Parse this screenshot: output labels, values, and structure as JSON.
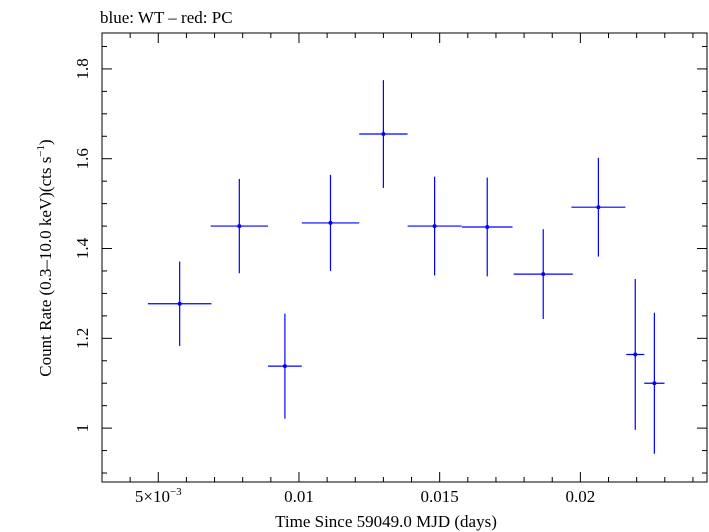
{
  "chart_data": {
    "type": "scatter",
    "title": "blue: WT – red: PC",
    "xlabel": "Time Since 59049.0 MJD (days)",
    "ylabel_main": "Count Rate (0.3–10.0 keV)(cts s",
    "ylabel_sup": "−1",
    "ylabel_close": ")",
    "xlim": [
      0.003,
      0.0245
    ],
    "ylim": [
      0.88,
      1.88
    ],
    "x_ticks": [
      {
        "value": 0.005,
        "label_base": "5×10",
        "label_exp": "−3"
      },
      {
        "value": 0.01,
        "label": "0.01"
      },
      {
        "value": 0.015,
        "label": "0.015"
      },
      {
        "value": 0.02,
        "label": "0.02"
      }
    ],
    "y_ticks": [
      {
        "value": 1.0,
        "label": "1"
      },
      {
        "value": 1.2,
        "label": "1.2"
      },
      {
        "value": 1.4,
        "label": "1.4"
      },
      {
        "value": 1.6,
        "label": "1.6"
      },
      {
        "value": 1.8,
        "label": "1.8"
      }
    ],
    "grid": false,
    "series": [
      {
        "color": "#0000ff",
        "points": [
          {
            "x": 0.00576,
            "y": 1.277,
            "xerr": 0.00113,
            "yerr": 0.094
          },
          {
            "x": 0.00788,
            "y": 1.45,
            "xerr": 0.00102,
            "yerr": 0.105
          },
          {
            "x": 0.0095,
            "y": 1.138,
            "xerr": 0.0006,
            "yerr": 0.117
          },
          {
            "x": 0.01112,
            "y": 1.457,
            "xerr": 0.00102,
            "yerr": 0.107
          },
          {
            "x": 0.013,
            "y": 1.655,
            "xerr": 0.00086,
            "yerr": 0.12
          },
          {
            "x": 0.01482,
            "y": 1.45,
            "xerr": 0.00096,
            "yerr": 0.11
          },
          {
            "x": 0.01669,
            "y": 1.448,
            "xerr": 0.0009,
            "yerr": 0.11
          },
          {
            "x": 0.01868,
            "y": 1.343,
            "xerr": 0.00105,
            "yerr": 0.1
          },
          {
            "x": 0.02064,
            "y": 1.492,
            "xerr": 0.00096,
            "yerr": 0.11
          },
          {
            "x": 0.02195,
            "y": 1.164,
            "xerr": 0.00032,
            "yerr": 0.168
          },
          {
            "x": 0.02263,
            "y": 1.1,
            "xerr": 0.00036,
            "yerr": 0.157
          }
        ]
      }
    ]
  }
}
